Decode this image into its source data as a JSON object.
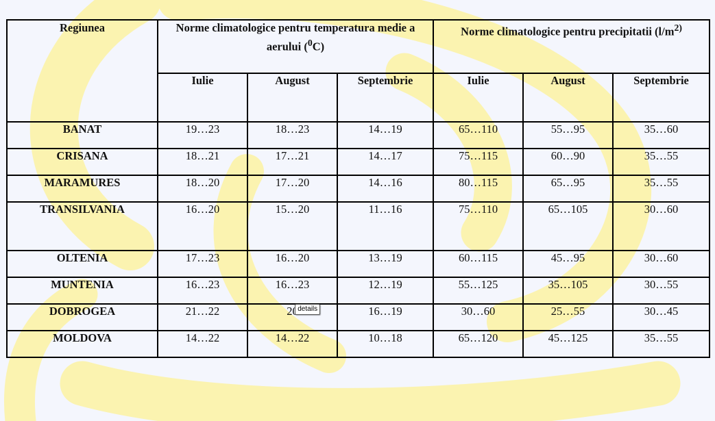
{
  "header": {
    "region": "Regiunea",
    "temp_group": "Norme climatologice pentru temperatura medie  a aerului (",
    "temp_sup": "0",
    "temp_unit_end": "C)",
    "prec_group": "Norme climatologice pentru precipitatii (l/m",
    "prec_sup": "2)",
    "months": [
      "Iulie",
      "August",
      "Septembrie",
      "Iulie",
      "August",
      "Septembrie"
    ]
  },
  "rows": [
    {
      "region": "BANAT",
      "values": [
        "19…23",
        "18…23",
        "14…19",
        "65…110",
        "55…95",
        "35…60"
      ]
    },
    {
      "region": "CRISANA",
      "values": [
        "18…21",
        "17…21",
        "14…17",
        "75…115",
        "60…90",
        "35…55"
      ]
    },
    {
      "region": "MARAMURES",
      "values": [
        "18…20",
        "17…20",
        "14…16",
        "80…115",
        "65…95",
        "35…55"
      ]
    },
    {
      "region": "TRANSILVANIA",
      "values": [
        "16…20",
        "15…20",
        "11…16",
        "75…110",
        "65…105",
        "30…60"
      ]
    },
    {
      "region": "OLTENIA",
      "values": [
        "17…23",
        "16…20",
        "13…19",
        "60…115",
        "45…95",
        "30…60"
      ]
    },
    {
      "region": "MUNTENIA",
      "values": [
        "16…23",
        "16…23",
        "12…19",
        "55…125",
        "35…105",
        "30…55"
      ]
    },
    {
      "region": "DOBROGEA",
      "values": [
        "21…22",
        "20",
        "16…19",
        "30…60",
        "25…55",
        "30…45"
      ]
    },
    {
      "region": "MOLDOVA",
      "values": [
        "14…22",
        "14…22",
        "10…18",
        "65…120",
        "45…125",
        "35…55"
      ]
    }
  ],
  "tooltip": "details",
  "colors": {
    "background": "#f4f6fd",
    "watermark": "#fbf3b0",
    "border": "#000000"
  }
}
